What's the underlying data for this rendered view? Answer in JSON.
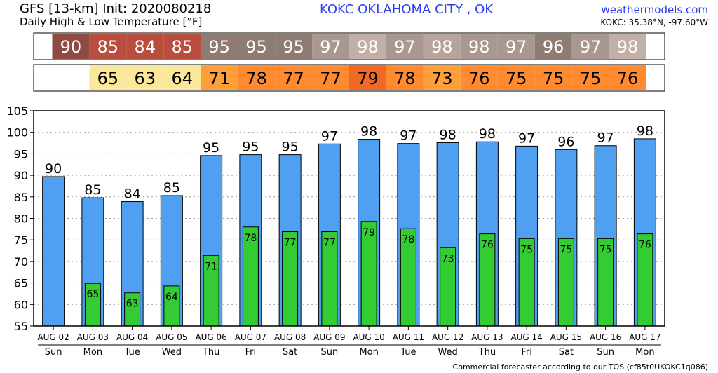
{
  "header": {
    "title_line1": "GFS [13-km] Init: 2020080218",
    "title_line2": "Daily High & Low Temperature [°F]",
    "location": "KOKC OKLAHOMA CITY  , OK",
    "site": "weathermodels.com",
    "coords": "KOKC: 35.38°N, -97.60°W"
  },
  "footer": {
    "text": "Commercial forecaster according to our TOS (cf85t0UKOKC1q086)"
  },
  "strips": {
    "high_colors": [
      "#8f4a44",
      "#b94d3e",
      "#b94d3e",
      "#b94d3e",
      "#8e7b72",
      "#8e7b72",
      "#8e7b72",
      "#a99891",
      "#c2b0a8",
      "#a99891",
      "#b7a49c",
      "#a99891",
      "#a99891",
      "#8e7b72",
      "#a99891",
      "#c2b0a8"
    ],
    "low_colors": [
      "#ffffff",
      "#fbe89a",
      "#fbe89a",
      "#fbe89a",
      "#ff9f3c",
      "#ff8a30",
      "#ff8a30",
      "#ff8a30",
      "#f06a26",
      "#ff8a30",
      "#ff9f3c",
      "#ff8a30",
      "#ff8a30",
      "#ff8a30",
      "#ff8a30",
      "#ff8a30"
    ]
  },
  "chart_data": {
    "type": "bar",
    "categories": [
      "AUG 02",
      "AUG 03",
      "AUG 04",
      "AUG 05",
      "AUG 06",
      "AUG 07",
      "AUG 08",
      "AUG 09",
      "AUG 10",
      "AUG 11",
      "AUG 12",
      "AUG 13",
      "AUG 14",
      "AUG 15",
      "AUG 16",
      "AUG 17"
    ],
    "weekdays": [
      "Sun",
      "Mon",
      "Tue",
      "Wed",
      "Thu",
      "Fri",
      "Sat",
      "Sun",
      "Mon",
      "Tue",
      "Wed",
      "Thu",
      "Fri",
      "Sat",
      "Sun",
      "Mon"
    ],
    "series": [
      {
        "color": "#4fa0f0",
        "values": [
          89.7,
          84.8,
          83.9,
          85.3,
          94.6,
          94.8,
          94.8,
          97.3,
          98.4,
          97.4,
          97.6,
          97.8,
          96.8,
          96.0,
          96.9,
          98.5
        ],
        "labels": [
          "90",
          "85",
          "84",
          "85",
          "95",
          "95",
          "95",
          "97",
          "98",
          "97",
          "98",
          "98",
          "97",
          "96",
          "97",
          "98"
        ]
      },
      {
        "color": "#33cc33",
        "values": [
          null,
          64.9,
          62.7,
          64.3,
          71.4,
          78.0,
          76.9,
          76.9,
          79.3,
          77.6,
          73.2,
          76.4,
          75.3,
          75.3,
          75.3,
          76.4
        ],
        "labels": [
          "",
          "65",
          "63",
          "64",
          "71",
          "78",
          "77",
          "77",
          "79",
          "78",
          "73",
          "76",
          "75",
          "75",
          "75",
          "76"
        ]
      }
    ],
    "ylim": [
      55,
      105
    ],
    "yticks": [
      "55",
      "60",
      "65",
      "70",
      "75",
      "80",
      "85",
      "90",
      "95",
      "100",
      "105"
    ],
    "grid": true
  }
}
